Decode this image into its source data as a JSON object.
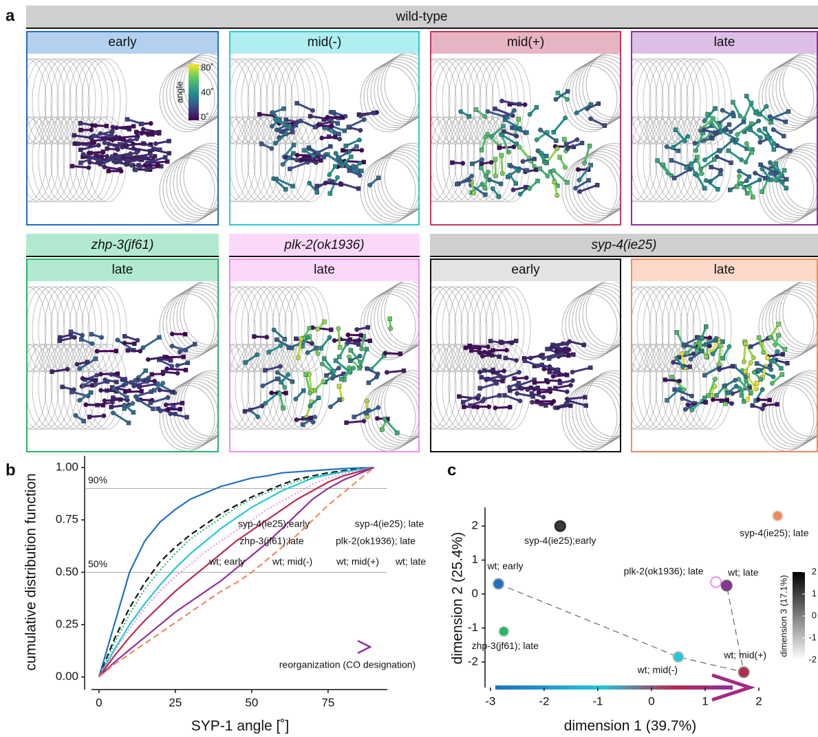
{
  "panel_labels": [
    "a",
    "b",
    "c"
  ],
  "panel_a": {
    "group_wt": "wild-type",
    "wt_panels": [
      "early",
      "mid(-)",
      "mid(+)",
      "late"
    ],
    "mutant_groups": [
      "zhp-3(jf61)",
      "plk-2(ok1936)",
      "syp-4(ie25)"
    ],
    "mutant_panels": [
      "late",
      "late",
      "early",
      "late"
    ],
    "colorbar": {
      "title": "angle",
      "ticks": [
        "80˚",
        "40˚",
        "0˚"
      ]
    }
  },
  "chart_data": [
    {
      "type": "line",
      "xlabel": "SYP-1 angle [˚]",
      "ylabel": "cumulative distribution function",
      "x": [
        0,
        5,
        10,
        15,
        20,
        25,
        30,
        35,
        40,
        45,
        50,
        55,
        60,
        65,
        70,
        75,
        80,
        85,
        90
      ],
      "xlim": [
        -4.7,
        94.4
      ],
      "ylim": [
        -0.06,
        1.056
      ],
      "xticks": [
        0,
        25,
        50,
        75
      ],
      "yticks": [
        {
          "value": 0,
          "label": "0.00"
        },
        {
          "value": 0.25,
          "label": "0.25"
        },
        {
          "value": 0.5,
          "label": "0.50"
        },
        {
          "value": 0.75,
          "label": "0.75"
        },
        {
          "value": 1,
          "label": "1.00"
        }
      ],
      "hlines": [
        {
          "value": 0.9,
          "label": "90%"
        },
        {
          "value": 0.5,
          "label": "50%"
        }
      ],
      "annotation": "reorganization (CO designation)",
      "series": [
        {
          "name": "wt; early",
          "color": "#1f6fc4",
          "dash": "solid",
          "values": [
            0,
            0.25,
            0.5,
            0.65,
            0.74,
            0.8,
            0.85,
            0.88,
            0.91,
            0.93,
            0.95,
            0.96,
            0.975,
            0.98,
            0.985,
            0.99,
            0.995,
            0.998,
            1
          ]
        },
        {
          "name": "syp-4(ie25);early",
          "color": "#111111",
          "dash": "dashed",
          "values": [
            0,
            0.18,
            0.33,
            0.45,
            0.55,
            0.62,
            0.68,
            0.73,
            0.78,
            0.82,
            0.86,
            0.89,
            0.92,
            0.945,
            0.96,
            0.975,
            0.985,
            0.993,
            1
          ]
        },
        {
          "name": "zhp-3(jf61);late",
          "color": "#2db36b",
          "dash": "dotted",
          "values": [
            0,
            0.16,
            0.3,
            0.42,
            0.51,
            0.59,
            0.66,
            0.71,
            0.76,
            0.81,
            0.85,
            0.88,
            0.91,
            0.935,
            0.955,
            0.97,
            0.98,
            0.99,
            1
          ]
        },
        {
          "name": "wt; mid(-)",
          "color": "#22c7d6",
          "dash": "solid",
          "values": [
            0,
            0.13,
            0.25,
            0.35,
            0.44,
            0.52,
            0.59,
            0.65,
            0.71,
            0.76,
            0.81,
            0.85,
            0.89,
            0.92,
            0.95,
            0.965,
            0.98,
            0.99,
            1
          ]
        },
        {
          "name": "plk-2(ok1936); late",
          "color": "#ef8ff0",
          "dash": "dotted",
          "values": [
            0,
            0.12,
            0.23,
            0.33,
            0.41,
            0.48,
            0.54,
            0.6,
            0.65,
            0.7,
            0.75,
            0.8,
            0.84,
            0.88,
            0.92,
            0.95,
            0.97,
            0.985,
            1
          ]
        },
        {
          "name": "wt; mid(+)",
          "color": "#b8294f",
          "dash": "solid",
          "values": [
            0,
            0.1,
            0.19,
            0.27,
            0.34,
            0.41,
            0.47,
            0.53,
            0.59,
            0.65,
            0.7,
            0.75,
            0.8,
            0.85,
            0.89,
            0.93,
            0.96,
            0.98,
            1
          ]
        },
        {
          "name": "wt; late",
          "color": "#8e2f9b",
          "dash": "solid",
          "values": [
            0,
            0.07,
            0.13,
            0.19,
            0.25,
            0.31,
            0.36,
            0.41,
            0.46,
            0.52,
            0.58,
            0.64,
            0.71,
            0.78,
            0.85,
            0.9,
            0.94,
            0.97,
            1
          ]
        },
        {
          "name": "syp-4(ie25); late",
          "color": "#f08a5d",
          "dash": "dashed",
          "values": [
            0,
            0.06,
            0.11,
            0.16,
            0.21,
            0.26,
            0.31,
            0.36,
            0.41,
            0.45,
            0.5,
            0.56,
            0.62,
            0.68,
            0.75,
            0.82,
            0.88,
            0.94,
            1
          ]
        }
      ]
    },
    {
      "type": "scatter",
      "xlabel": "dimension 1 (39.7%)",
      "ylabel": "dimension 2 (25.4%)",
      "xlim": [
        -3.1,
        2.41
      ],
      "ylim": [
        -2.75,
        2.55
      ],
      "xticks": [
        -3,
        -2,
        -1,
        0,
        1,
        2
      ],
      "yticks": [
        -2,
        -1,
        0,
        1,
        2
      ],
      "colorbar": {
        "title": "dimension 3 (17.1%)",
        "lim": [
          -2,
          2
        ],
        "ticks": [
          -2,
          -1,
          0,
          1,
          2
        ]
      },
      "series": [
        {
          "name": "syp-4(ie25);early",
          "color": "#3a3a3a",
          "x": [
            -1.7
          ],
          "values": [
            2.0
          ],
          "z": [
            1.5
          ]
        },
        {
          "name": "wt; early",
          "color": "#1f6fc4",
          "x": [
            -2.85
          ],
          "values": [
            0.3
          ],
          "z": [
            -0.5
          ]
        },
        {
          "name": "zhp-3(jf61); late",
          "color": "#2db36b",
          "x": [
            -2.75
          ],
          "values": [
            -1.1
          ],
          "z": [
            -1.5
          ]
        },
        {
          "name": "plk-2(ok1936); late",
          "color": "#ef8ff0",
          "hollow": true,
          "x": [
            1.2
          ],
          "values": [
            0.35
          ],
          "z": [
            -1.8
          ]
        },
        {
          "name": "wt; late",
          "color": "#8e2f9b",
          "x": [
            1.4
          ],
          "values": [
            0.25
          ],
          "z": [
            0.5
          ]
        },
        {
          "name": "wt; mid(-)",
          "color": "#22c7d6",
          "x": [
            0.5
          ],
          "values": [
            -1.85
          ],
          "z": [
            -1
          ]
        },
        {
          "name": "wt; mid(+)",
          "color": "#b8294f",
          "x": [
            1.72
          ],
          "values": [
            -2.3
          ],
          "z": [
            0
          ]
        },
        {
          "name": "syp-4(ie25); late",
          "color": "#f08a5d",
          "x": [
            2.35
          ],
          "values": [
            2.3
          ],
          "z": [
            -1.5
          ]
        }
      ]
    }
  ]
}
